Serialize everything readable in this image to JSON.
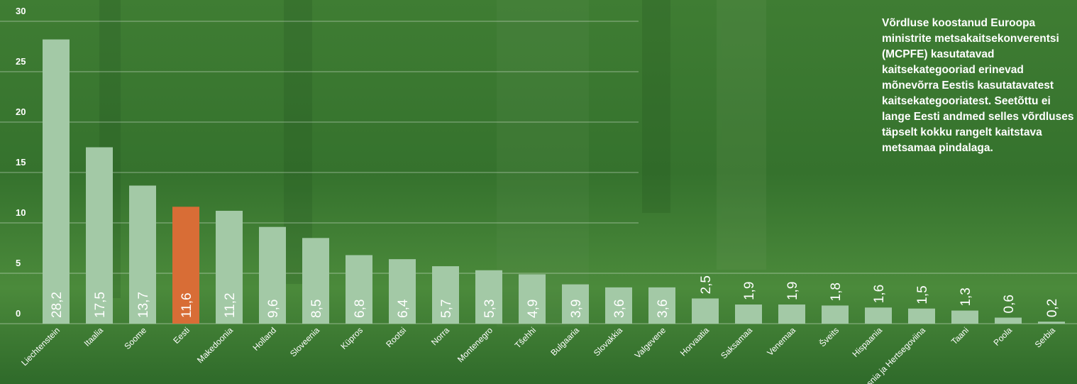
{
  "chart_data": {
    "type": "bar",
    "annotation": "Võrdluse koostanud Euroopa ministrite metsakaitsekonverentsi (MCPFE) kasutatavad kaitsekategooriad erinevad mõnevõrra Eestis kasutatavatest kaitsekategooriatest. Seetõttu ei lange Eesti andmed selles võrdluses täpselt kokku rangelt kaitstava metsamaa pindalaga.",
    "categories": [
      "Liechtenstein",
      "Itaalia",
      "Soome",
      "Eesti",
      "Makedoonia",
      "Holland",
      "Sloveenia",
      "Küpros",
      "Rootsi",
      "Norra",
      "Montenegro",
      "Tšehhi",
      "Bulgaaria",
      "Slovakkia",
      "Valgevene",
      "Horvaatia",
      "Saksamaa",
      "Venemaa",
      "Šveits",
      "Hispaania",
      "Bosnia ja Hertsegoviina",
      "Taani",
      "Poola",
      "Serbia"
    ],
    "values": [
      28.2,
      17.5,
      13.7,
      11.6,
      11.2,
      9.6,
      8.5,
      6.8,
      6.4,
      5.7,
      5.3,
      4.9,
      3.9,
      3.6,
      3.6,
      2.5,
      1.9,
      1.9,
      1.8,
      1.6,
      1.5,
      1.3,
      0.6,
      0.2
    ],
    "value_labels": [
      "28,2",
      "17,5",
      "13,7",
      "11,6",
      "11,2",
      "9,6",
      "8,5",
      "6,8",
      "6,4",
      "5,7",
      "5,3",
      "4,9",
      "3,9",
      "3,6",
      "3,6",
      "2,5",
      "1,9",
      "1,9",
      "1,8",
      "1,6",
      "1,5",
      "1,3",
      "0,6",
      "0,2"
    ],
    "colors": [
      "#a3c9a6",
      "#a3c9a6",
      "#a3c9a6",
      "#d86d36",
      "#a3c9a6",
      "#a3c9a6",
      "#a3c9a6",
      "#a3c9a6",
      "#a3c9a6",
      "#a3c9a6",
      "#a3c9a6",
      "#a3c9a6",
      "#a3c9a6",
      "#a3c9a6",
      "#a3c9a6",
      "#a3c9a6",
      "#a3c9a6",
      "#a3c9a6",
      "#a3c9a6",
      "#a3c9a6",
      "#a3c9a6",
      "#a3c9a6",
      "#a3c9a6",
      "#a3c9a6"
    ],
    "ylim": [
      0,
      30
    ],
    "yticks": [
      0,
      5,
      10,
      15,
      20,
      25,
      30
    ],
    "grid": true
  }
}
